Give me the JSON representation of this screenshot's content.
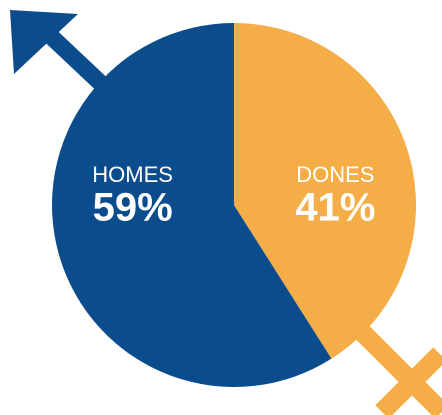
{
  "chart_data": {
    "type": "pie",
    "categories": [
      "HOMES",
      "DONES"
    ],
    "values": [
      59,
      41
    ],
    "value_labels": [
      "59%",
      "41%"
    ],
    "colors": [
      "#0a4c8c",
      "#f5ad48"
    ]
  }
}
